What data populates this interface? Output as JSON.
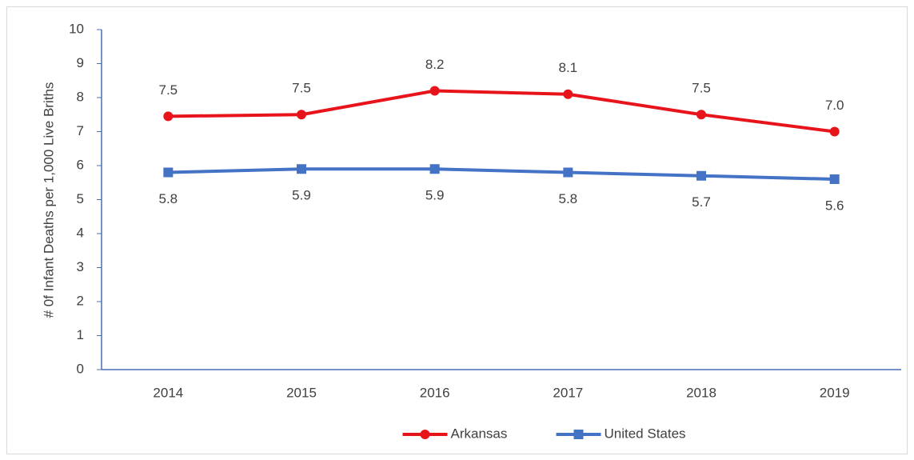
{
  "chart_data": {
    "type": "line",
    "y_label": "# 0f Infant Deaths per 1,000 Live Briths",
    "categories": [
      "2014",
      "2015",
      "2016",
      "2017",
      "2018",
      "2019"
    ],
    "series": [
      {
        "name": "Arkansas",
        "color": "#e8141c",
        "marker": "circle",
        "values": [
          7.45,
          7.5,
          8.2,
          8.1,
          7.5,
          7.0
        ],
        "value_labels": [
          "7.5",
          "7.5",
          "8.2",
          "8.1",
          "7.5",
          "7.0"
        ],
        "label_position": "above"
      },
      {
        "name": "United States",
        "color": "#4472c4",
        "marker": "square",
        "values": [
          5.8,
          5.9,
          5.9,
          5.8,
          5.7,
          5.6
        ],
        "value_labels": [
          "5.8",
          "5.9",
          "5.9",
          "5.8",
          "5.7",
          "5.6"
        ],
        "label_position": "below"
      }
    ],
    "ylim": [
      0,
      10
    ],
    "yticks": [
      0,
      1,
      2,
      3,
      4,
      5,
      6,
      7,
      8,
      9,
      10
    ],
    "grid": false,
    "legend": "bottom"
  }
}
